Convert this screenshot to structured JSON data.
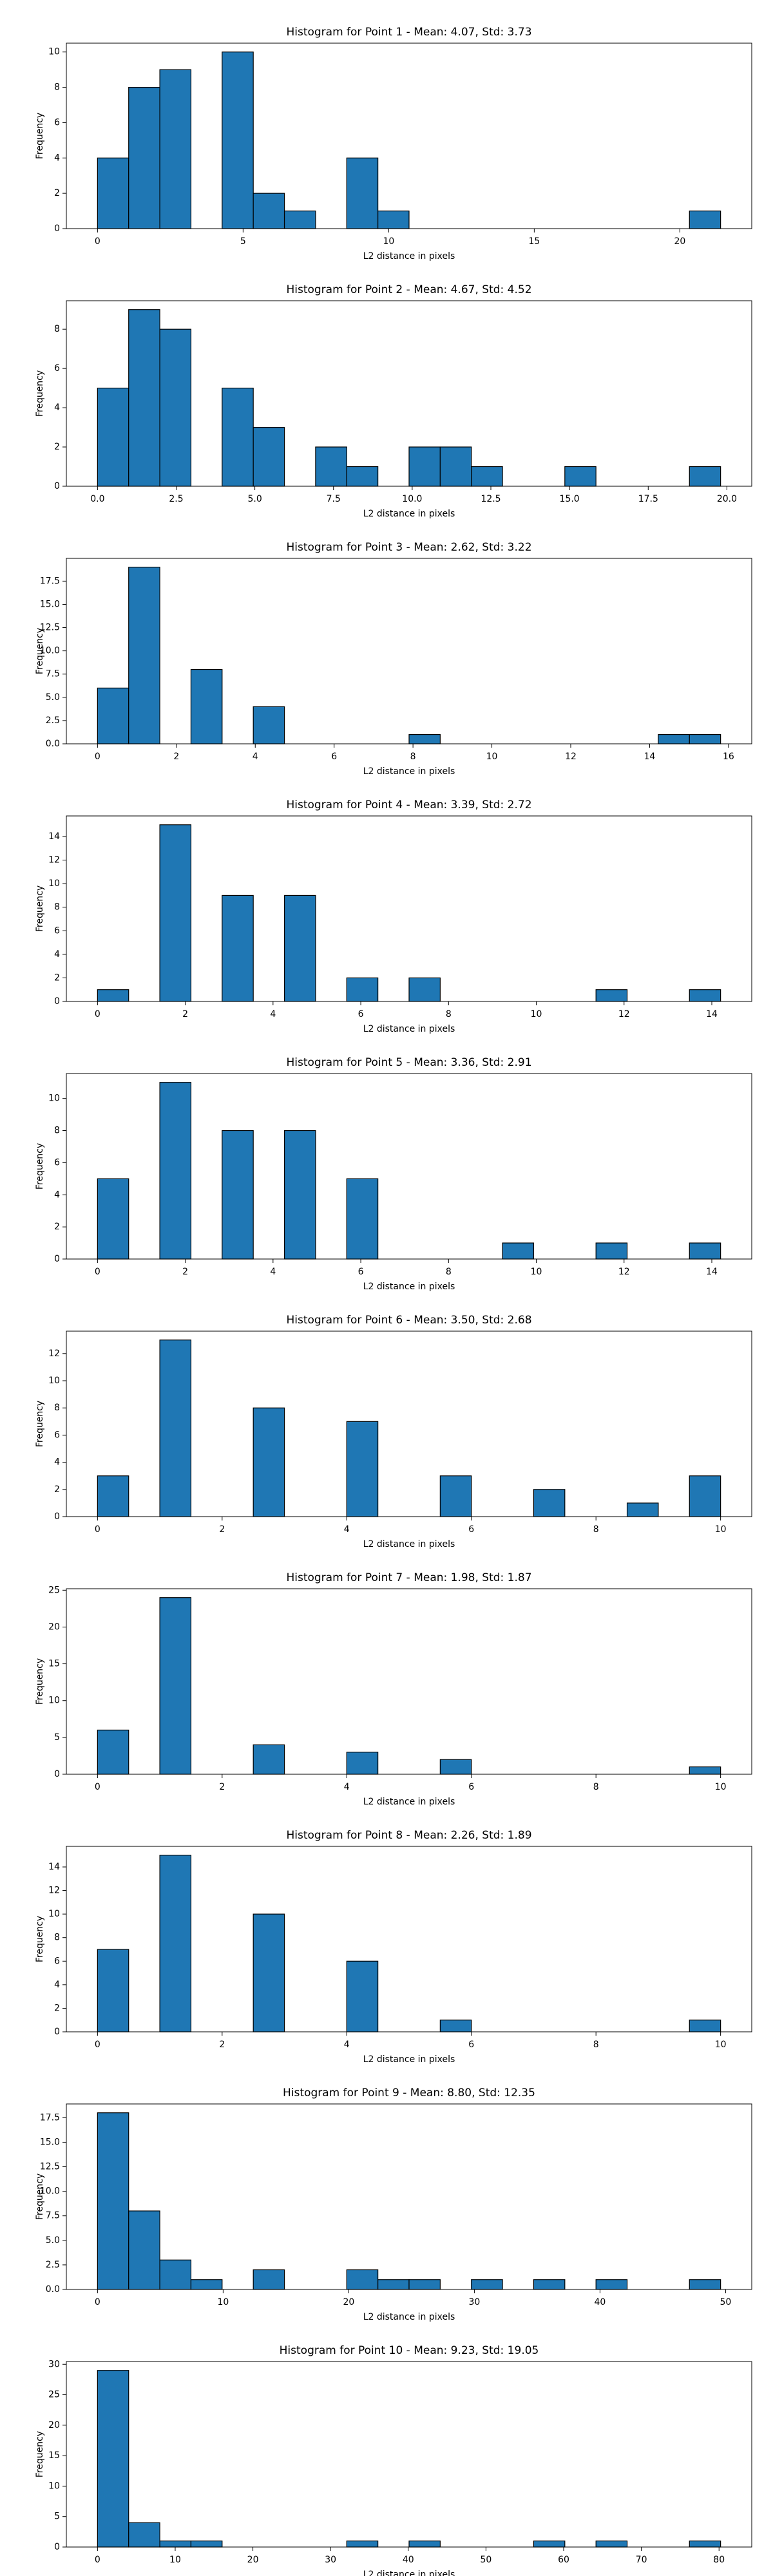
{
  "chart_data": [
    {
      "type": "histogram",
      "title": "Histogram for Point 1 - Mean: 4.07, Std: 3.73",
      "x_label": "L2 distance in pixels",
      "y_label": "Frequency",
      "color": "#1f77b4",
      "bins": [
        0,
        1.07,
        2.14,
        3.21,
        4.28,
        5.35,
        6.42,
        7.49,
        8.56,
        9.63,
        10.7,
        11.77,
        12.84,
        13.91,
        14.98,
        16.05,
        17.12,
        18.19,
        19.26,
        20.33,
        21.4
      ],
      "values": [
        4,
        8,
        9,
        0,
        10,
        2,
        1,
        0,
        4,
        1,
        0,
        0,
        0,
        0,
        0,
        0,
        0,
        0,
        0,
        1
      ],
      "xlim": [
        -1.07,
        22.47
      ],
      "ylim": [
        0,
        10.5
      ],
      "xticks": [
        0,
        5,
        10,
        15,
        20
      ],
      "yticks": [
        0,
        2,
        4,
        6,
        8,
        10
      ]
    },
    {
      "type": "histogram",
      "title": "Histogram for Point 2 - Mean: 4.67, Std: 4.52",
      "x_label": "L2 distance in pixels",
      "y_label": "Frequency",
      "color": "#1f77b4",
      "bins": [
        0,
        0.99,
        1.98,
        2.97,
        3.96,
        4.95,
        5.94,
        6.93,
        7.92,
        8.91,
        9.9,
        10.89,
        11.88,
        12.87,
        13.86,
        14.85,
        15.84,
        16.83,
        17.82,
        18.81,
        19.8
      ],
      "values": [
        5,
        9,
        8,
        0,
        5,
        3,
        0,
        2,
        1,
        0,
        2,
        2,
        1,
        0,
        0,
        1,
        0,
        0,
        0,
        1
      ],
      "xlim": [
        -0.99,
        20.79
      ],
      "ylim": [
        0,
        9.45
      ],
      "xticks": [
        {
          "value": 0,
          "label": "0.0"
        },
        {
          "value": 2.5,
          "label": "2.5"
        },
        {
          "value": 5,
          "label": "5.0"
        },
        {
          "value": 7.5,
          "label": "7.5"
        },
        {
          "value": 10,
          "label": "10.0"
        },
        {
          "value": 12.5,
          "label": "12.5"
        },
        {
          "value": 15,
          "label": "15.0"
        },
        {
          "value": 17.5,
          "label": "17.5"
        },
        {
          "value": 20,
          "label": "20.0"
        }
      ],
      "yticks": [
        0,
        2,
        4,
        6,
        8
      ]
    },
    {
      "type": "histogram",
      "title": "Histogram for Point 3 - Mean: 2.62, Std: 3.22",
      "x_label": "L2 distance in pixels",
      "y_label": "Frequency",
      "color": "#1f77b4",
      "bins": [
        0,
        0.79,
        1.58,
        2.37,
        3.16,
        3.95,
        4.74,
        5.53,
        6.32,
        7.11,
        7.9,
        8.69,
        9.48,
        10.27,
        11.06,
        11.85,
        12.64,
        13.43,
        14.22,
        15.01,
        15.8
      ],
      "values": [
        6,
        19,
        0,
        8,
        0,
        4,
        0,
        0,
        0,
        0,
        1,
        0,
        0,
        0,
        0,
        0,
        0,
        0,
        1,
        1
      ],
      "xlim": [
        -0.79,
        16.59
      ],
      "ylim": [
        0,
        19.95
      ],
      "xticks": [
        0,
        2,
        4,
        6,
        8,
        10,
        12,
        14,
        16
      ],
      "yticks": [
        {
          "value": 0,
          "label": "0.0"
        },
        {
          "value": 2.5,
          "label": "2.5"
        },
        {
          "value": 5,
          "label": "5.0"
        },
        {
          "value": 7.5,
          "label": "7.5"
        },
        {
          "value": 10,
          "label": "10.0"
        },
        {
          "value": 12.5,
          "label": "12.5"
        },
        {
          "value": 15,
          "label": "15.0"
        },
        {
          "value": 17.5,
          "label": "17.5"
        }
      ]
    },
    {
      "type": "histogram",
      "title": "Histogram for Point 4 - Mean: 3.39, Std: 2.72",
      "x_label": "L2 distance in pixels",
      "y_label": "Frequency",
      "color": "#1f77b4",
      "bins": [
        0,
        0.71,
        1.42,
        2.13,
        2.84,
        3.55,
        4.26,
        4.97,
        5.68,
        6.39,
        7.1,
        7.81,
        8.52,
        9.23,
        9.94,
        10.65,
        11.36,
        12.07,
        12.78,
        13.49,
        14.2
      ],
      "values": [
        1,
        0,
        15,
        0,
        9,
        0,
        9,
        0,
        2,
        0,
        2,
        0,
        0,
        0,
        0,
        0,
        1,
        0,
        0,
        1
      ],
      "xlim": [
        -0.71,
        14.91
      ],
      "ylim": [
        0,
        15.75
      ],
      "xticks": [
        0,
        2,
        4,
        6,
        8,
        10,
        12,
        14
      ],
      "yticks": [
        0,
        2,
        4,
        6,
        8,
        10,
        12,
        14
      ]
    },
    {
      "type": "histogram",
      "title": "Histogram for Point 5 - Mean: 3.36, Std: 2.91",
      "x_label": "L2 distance in pixels",
      "y_label": "Frequency",
      "color": "#1f77b4",
      "bins": [
        0,
        0.71,
        1.42,
        2.13,
        2.84,
        3.55,
        4.26,
        4.97,
        5.68,
        6.39,
        7.1,
        7.81,
        8.52,
        9.23,
        9.94,
        10.65,
        11.36,
        12.07,
        12.78,
        13.49,
        14.2
      ],
      "values": [
        5,
        0,
        11,
        0,
        8,
        0,
        8,
        0,
        5,
        0,
        0,
        0,
        0,
        1,
        0,
        0,
        1,
        0,
        0,
        1
      ],
      "xlim": [
        -0.71,
        14.91
      ],
      "ylim": [
        0,
        11.55
      ],
      "xticks": [
        0,
        2,
        4,
        6,
        8,
        10,
        12,
        14
      ],
      "yticks": [
        0,
        2,
        4,
        6,
        8,
        10
      ]
    },
    {
      "type": "histogram",
      "title": "Histogram for Point 6 - Mean: 3.50, Std: 2.68",
      "x_label": "L2 distance in pixels",
      "y_label": "Frequency",
      "color": "#1f77b4",
      "bins": [
        0,
        0.5,
        1,
        1.5,
        2,
        2.5,
        3,
        3.5,
        4,
        4.5,
        5,
        5.5,
        6,
        6.5,
        7,
        7.5,
        8,
        8.5,
        9,
        9.5,
        10
      ],
      "values": [
        3,
        0,
        13,
        0,
        0,
        8,
        0,
        0,
        7,
        0,
        0,
        3,
        0,
        0,
        2,
        0,
        0,
        1,
        0,
        3
      ],
      "xlim": [
        -0.5,
        10.5
      ],
      "ylim": [
        0,
        13.65
      ],
      "xticks": [
        0,
        2,
        4,
        6,
        8,
        10
      ],
      "yticks": [
        0,
        2,
        4,
        6,
        8,
        10,
        12
      ]
    },
    {
      "type": "histogram",
      "title": "Histogram for Point 7 - Mean: 1.98, Std: 1.87",
      "x_label": "L2 distance in pixels",
      "y_label": "Frequency",
      "color": "#1f77b4",
      "bins": [
        0,
        0.5,
        1,
        1.5,
        2,
        2.5,
        3,
        3.5,
        4,
        4.5,
        5,
        5.5,
        6,
        6.5,
        7,
        7.5,
        8,
        8.5,
        9,
        9.5,
        10
      ],
      "values": [
        6,
        0,
        24,
        0,
        0,
        4,
        0,
        0,
        3,
        0,
        0,
        2,
        0,
        0,
        0,
        0,
        0,
        0,
        0,
        1
      ],
      "xlim": [
        -0.5,
        10.5
      ],
      "ylim": [
        0,
        25.2
      ],
      "xticks": [
        0,
        2,
        4,
        6,
        8,
        10
      ],
      "yticks": [
        0,
        5,
        10,
        15,
        20,
        25
      ]
    },
    {
      "type": "histogram",
      "title": "Histogram for Point 8 - Mean: 2.26, Std: 1.89",
      "x_label": "L2 distance in pixels",
      "y_label": "Frequency",
      "color": "#1f77b4",
      "bins": [
        0,
        0.5,
        1,
        1.5,
        2,
        2.5,
        3,
        3.5,
        4,
        4.5,
        5,
        5.5,
        6,
        6.5,
        7,
        7.5,
        8,
        8.5,
        9,
        9.5,
        10
      ],
      "values": [
        7,
        0,
        15,
        0,
        0,
        10,
        0,
        0,
        6,
        0,
        0,
        1,
        0,
        0,
        0,
        0,
        0,
        0,
        0,
        1
      ],
      "xlim": [
        -0.5,
        10.5
      ],
      "ylim": [
        0,
        15.75
      ],
      "xticks": [
        0,
        2,
        4,
        6,
        8,
        10
      ],
      "yticks": [
        0,
        2,
        4,
        6,
        8,
        10,
        12,
        14
      ]
    },
    {
      "type": "histogram",
      "title": "Histogram for Point 9 - Mean: 8.80, Std: 12.35",
      "x_label": "L2 distance in pixels",
      "y_label": "Frequency",
      "color": "#1f77b4",
      "bins": [
        0,
        2.48,
        4.96,
        7.44,
        9.92,
        12.4,
        14.88,
        17.36,
        19.84,
        22.32,
        24.8,
        27.28,
        29.76,
        32.24,
        34.72,
        37.2,
        39.68,
        42.16,
        44.64,
        47.12,
        49.6
      ],
      "values": [
        18,
        8,
        3,
        1,
        0,
        2,
        0,
        0,
        2,
        1,
        1,
        0,
        1,
        0,
        1,
        0,
        1,
        0,
        0,
        1
      ],
      "xlim": [
        -2.48,
        52.08
      ],
      "ylim": [
        0,
        18.9
      ],
      "xticks": [
        0,
        10,
        20,
        30,
        40,
        50
      ],
      "yticks": [
        {
          "value": 0,
          "label": "0.0"
        },
        {
          "value": 2.5,
          "label": "2.5"
        },
        {
          "value": 5,
          "label": "5.0"
        },
        {
          "value": 7.5,
          "label": "7.5"
        },
        {
          "value": 10,
          "label": "10.0"
        },
        {
          "value": 12.5,
          "label": "12.5"
        },
        {
          "value": 15,
          "label": "15.0"
        },
        {
          "value": 17.5,
          "label": "17.5"
        }
      ]
    },
    {
      "type": "histogram",
      "title": "Histogram for Point 10 - Mean: 9.23, Std: 19.05",
      "x_label": "L2 distance in pixels",
      "y_label": "Frequency",
      "color": "#1f77b4",
      "bins": [
        0,
        4.01,
        8.02,
        12.03,
        16.04,
        20.05,
        24.06,
        28.07,
        32.08,
        36.09,
        40.1,
        44.11,
        48.12,
        52.13,
        56.14,
        60.15,
        64.16,
        68.17,
        72.18,
        76.19,
        80.2
      ],
      "values": [
        29,
        4,
        1,
        1,
        0,
        0,
        0,
        0,
        1,
        0,
        1,
        0,
        0,
        0,
        1,
        0,
        1,
        0,
        0,
        1
      ],
      "xlim": [
        -4.01,
        84.21
      ],
      "ylim": [
        0,
        30.45
      ],
      "xticks": [
        0,
        10,
        20,
        30,
        40,
        50,
        60,
        70,
        80
      ],
      "yticks": [
        0,
        5,
        10,
        15,
        20,
        25,
        30
      ]
    }
  ]
}
